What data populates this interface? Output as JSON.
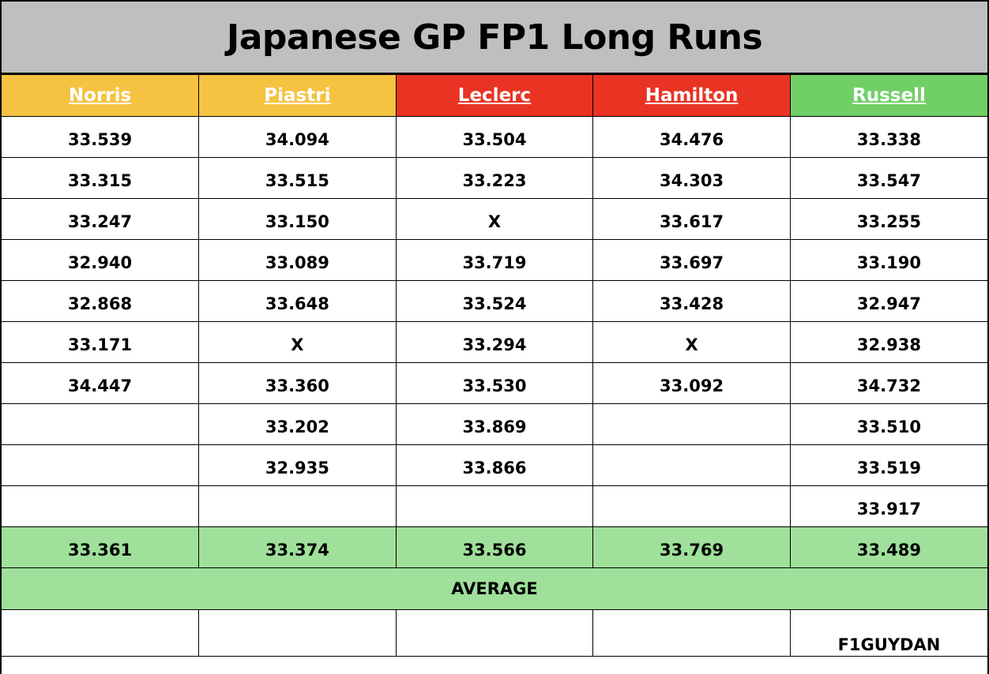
{
  "title": "Japanese GP FP1 Long Runs",
  "drivers": [
    {
      "name": "Norris",
      "color": "#f5c242"
    },
    {
      "name": "Piastri",
      "color": "#f5c242"
    },
    {
      "name": "Leclerc ",
      "color": "#e93323"
    },
    {
      "name": "Hamilton ",
      "color": "#e93323"
    },
    {
      "name": "Russell ",
      "color": "#70cf65"
    }
  ],
  "laps": [
    [
      "33.539",
      "34.094",
      "33.504",
      "34.476",
      "33.338"
    ],
    [
      "33.315",
      "33.515",
      "33.223",
      "34.303",
      "33.547"
    ],
    [
      "33.247",
      "33.150",
      "X",
      "33.617",
      "33.255"
    ],
    [
      "32.940",
      "33.089",
      "33.719",
      "33.697",
      "33.190"
    ],
    [
      "32.868",
      "33.648",
      "33.524",
      "33.428",
      "32.947"
    ],
    [
      "33.171",
      "X",
      "33.294",
      "X",
      "32.938"
    ],
    [
      "34.447",
      "33.360",
      "33.530",
      "33.092",
      "34.732"
    ],
    [
      "",
      "33.202",
      "33.869",
      "",
      "33.510"
    ],
    [
      "",
      "32.935",
      "33.866",
      "",
      "33.519"
    ],
    [
      "",
      "",
      "",
      "",
      "33.917"
    ]
  ],
  "averages": [
    "33.361",
    "33.374",
    "33.566",
    "33.769",
    "33.489"
  ],
  "average_label": "AVERAGE",
  "footer": [
    "",
    "",
    "",
    "",
    "F1GUYDAN"
  ],
  "colors": {
    "title_bg": "#bfbfbf",
    "average_bg": "#9fe09a"
  }
}
